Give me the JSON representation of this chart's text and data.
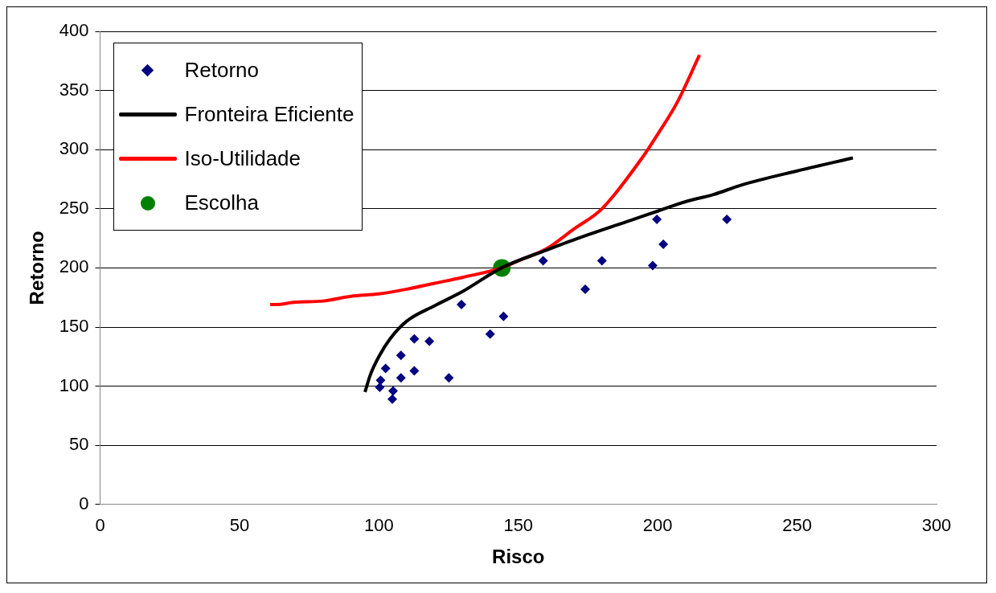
{
  "chart_data": {
    "type": "scatter",
    "xlabel": "Risco",
    "ylabel": "Retorno",
    "xlim": [
      0,
      300
    ],
    "xticks": [
      0,
      50,
      100,
      150,
      200,
      250,
      300
    ],
    "ylim": [
      0,
      400
    ],
    "yticks": [
      0,
      50,
      100,
      150,
      200,
      250,
      300,
      350,
      400
    ],
    "grid": "y",
    "legend": "top left",
    "series": [
      {
        "name": "Retorno",
        "marker": "diamond",
        "color": "#000080",
        "x": [
          102.4,
          100.6,
          100.3,
          105.1,
          104.8,
          107.9,
          107.9,
          112.7,
          118.1,
          112.7,
          125.1,
          129.6,
          139.9,
          144.7,
          158.9,
          174,
          180,
          198.2,
          199.7,
          202,
          224.8
        ],
        "values": [
          115,
          105,
          99,
          96,
          89,
          126,
          107,
          140,
          138,
          113,
          107,
          169,
          144,
          159,
          206,
          182,
          206,
          202,
          241,
          220,
          241
        ]
      },
      {
        "name": "Fronteira Eficiente",
        "type": "line",
        "marker": "none",
        "color": "#000000",
        "x": [
          95,
          97,
          100,
          104,
          110,
          120,
          130,
          144,
          160,
          175,
          190,
          200,
          210,
          220,
          230,
          250,
          270
        ],
        "values": [
          95,
          110,
          125,
          140,
          155,
          168,
          180,
          200,
          215,
          228,
          240,
          248,
          256,
          262,
          270,
          282,
          293
        ]
      },
      {
        "name": "Iso-Utilidade",
        "type": "line",
        "marker": "none",
        "color": "#ff0000",
        "x": [
          61,
          63,
          70,
          80,
          90,
          100,
          110,
          120,
          130,
          144,
          150,
          160,
          170,
          180,
          195,
          200,
          207,
          215
        ],
        "values": [
          169,
          169,
          171,
          172,
          176,
          178,
          182,
          187,
          192,
          200,
          206,
          216,
          233,
          250,
          295,
          313,
          340,
          380
        ]
      },
      {
        "name": "Escolha",
        "marker": "circle",
        "color": "#008000",
        "x": [
          144.1
        ],
        "values": [
          200
        ]
      }
    ]
  }
}
